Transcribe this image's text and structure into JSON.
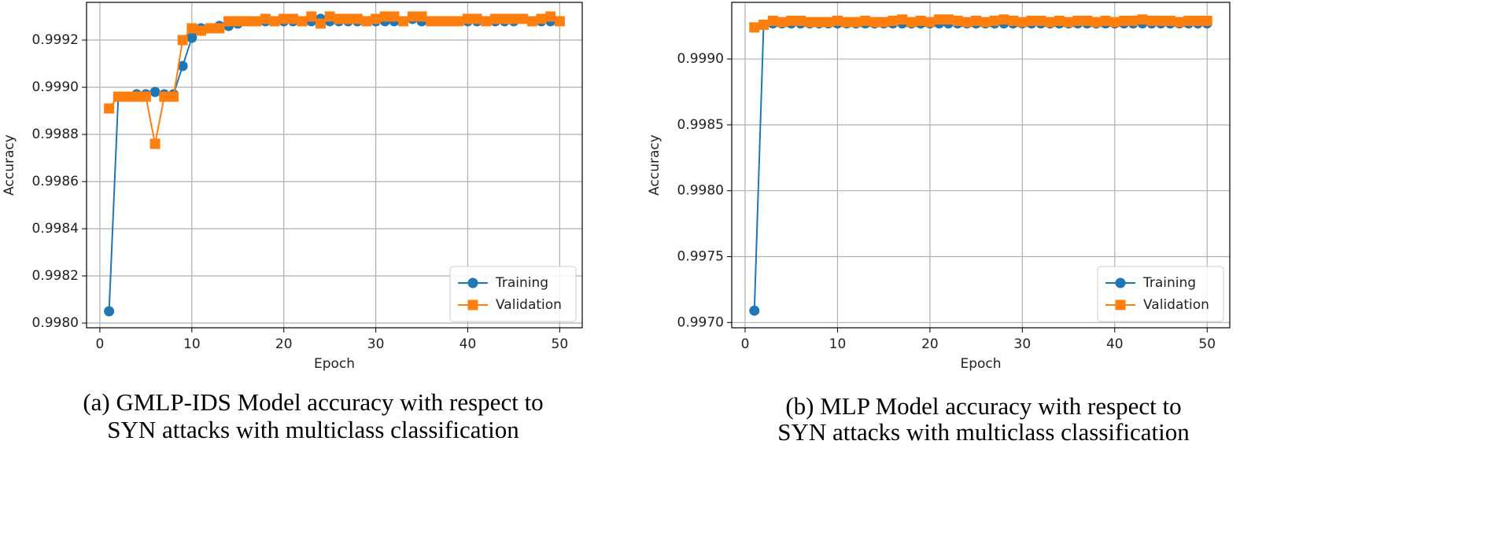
{
  "chart_data": [
    {
      "type": "line",
      "xlabel": "Epoch",
      "ylabel": "Accuracy",
      "caption": [
        "(a) GMLP-IDS Model accuracy with respect to",
        "SYN attacks with multiclass classification"
      ],
      "x": [
        1,
        2,
        3,
        4,
        5,
        6,
        7,
        8,
        9,
        10,
        11,
        12,
        13,
        14,
        15,
        16,
        17,
        18,
        19,
        20,
        21,
        22,
        23,
        24,
        25,
        26,
        27,
        28,
        29,
        30,
        31,
        32,
        33,
        34,
        35,
        36,
        37,
        38,
        39,
        40,
        41,
        42,
        43,
        44,
        45,
        46,
        47,
        48,
        49,
        50
      ],
      "series": [
        {
          "name": "Training",
          "color": "#1f77b4",
          "marker": "circle",
          "values": [
            0.99805,
            0.99896,
            0.99896,
            0.99897,
            0.99897,
            0.99898,
            0.99897,
            0.99897,
            0.99909,
            0.99921,
            0.99925,
            0.99925,
            0.99926,
            0.99926,
            0.99927,
            0.99928,
            0.99928,
            0.99928,
            0.99928,
            0.99928,
            0.99928,
            0.99928,
            0.99928,
            0.99929,
            0.99928,
            0.99928,
            0.99928,
            0.99928,
            0.99928,
            0.99928,
            0.99928,
            0.99928,
            0.99928,
            0.99929,
            0.99928,
            0.99928,
            0.99928,
            0.99928,
            0.99928,
            0.99928,
            0.99928,
            0.99928,
            0.99928,
            0.99928,
            0.99928,
            0.99929,
            0.99928,
            0.99928,
            0.99928,
            0.99928
          ]
        },
        {
          "name": "Validation",
          "color": "#ff7f0e",
          "marker": "square",
          "values": [
            0.99891,
            0.99896,
            0.99896,
            0.99896,
            0.99896,
            0.99876,
            0.99896,
            0.99896,
            0.9992,
            0.99925,
            0.99924,
            0.99925,
            0.99925,
            0.99928,
            0.99928,
            0.99928,
            0.99928,
            0.99929,
            0.99928,
            0.99929,
            0.99929,
            0.99928,
            0.9993,
            0.99927,
            0.9993,
            0.99929,
            0.99929,
            0.99929,
            0.99928,
            0.99929,
            0.9993,
            0.9993,
            0.99928,
            0.9993,
            0.9993,
            0.99928,
            0.99928,
            0.99928,
            0.99928,
            0.99929,
            0.99929,
            0.99928,
            0.99929,
            0.99929,
            0.99929,
            0.99929,
            0.99928,
            0.99929,
            0.9993,
            0.99928
          ]
        }
      ],
      "xlim": [
        -1.45,
        52.45
      ],
      "xticks": [
        0,
        10,
        20,
        30,
        40,
        50
      ],
      "ylim": [
        0.99798,
        0.99936
      ],
      "yticks": [
        {
          "value": 0.998,
          "label": "0.9980"
        },
        0.9982,
        0.9984,
        0.9986,
        0.9988,
        {
          "value": 0.999,
          "label": "0.9990"
        },
        0.9992
      ],
      "grid": true,
      "legend": "lower right"
    },
    {
      "type": "line",
      "xlabel": "Epoch",
      "ylabel": "Accuracy",
      "caption": [
        "(b) MLP Model accuracy with respect to",
        "SYN attacks with multiclass classification"
      ],
      "x": [
        1,
        2,
        3,
        4,
        5,
        6,
        7,
        8,
        9,
        10,
        11,
        12,
        13,
        14,
        15,
        16,
        17,
        18,
        19,
        20,
        21,
        22,
        23,
        24,
        25,
        26,
        27,
        28,
        29,
        30,
        31,
        32,
        33,
        34,
        35,
        36,
        37,
        38,
        39,
        40,
        41,
        42,
        43,
        44,
        45,
        46,
        47,
        48,
        49,
        50
      ],
      "series": [
        {
          "name": "Training",
          "color": "#1f77b4",
          "marker": "circle",
          "values": [
            0.99709,
            0.99926,
            0.99927,
            0.99927,
            0.99927,
            0.99927,
            0.99927,
            0.99927,
            0.99927,
            0.99927,
            0.99927,
            0.99927,
            0.99927,
            0.99927,
            0.99927,
            0.99927,
            0.99927,
            0.99927,
            0.99927,
            0.99927,
            0.99927,
            0.99927,
            0.99927,
            0.99927,
            0.99927,
            0.99927,
            0.99927,
            0.99927,
            0.99927,
            0.99927,
            0.99927,
            0.99927,
            0.99927,
            0.99927,
            0.99927,
            0.99927,
            0.99927,
            0.99927,
            0.99927,
            0.99927,
            0.99927,
            0.99927,
            0.99927,
            0.99927,
            0.99927,
            0.99927,
            0.99927,
            0.99927,
            0.99927,
            0.99927
          ]
        },
        {
          "name": "Validation",
          "color": "#ff7f0e",
          "marker": "square",
          "values": [
            0.99924,
            0.99926,
            0.99929,
            0.99928,
            0.99929,
            0.99929,
            0.99928,
            0.99928,
            0.99928,
            0.99929,
            0.99928,
            0.99928,
            0.99929,
            0.99928,
            0.99928,
            0.99929,
            0.9993,
            0.99928,
            0.99929,
            0.99928,
            0.9993,
            0.9993,
            0.99929,
            0.99928,
            0.99929,
            0.99928,
            0.99929,
            0.9993,
            0.99929,
            0.99928,
            0.99929,
            0.99929,
            0.99928,
            0.99929,
            0.99928,
            0.99929,
            0.99929,
            0.99928,
            0.99929,
            0.99928,
            0.99929,
            0.99929,
            0.9993,
            0.99929,
            0.99929,
            0.99929,
            0.99928,
            0.99929,
            0.99929,
            0.99929
          ]
        }
      ],
      "xlim": [
        -1.45,
        52.45
      ],
      "xticks": [
        0,
        10,
        20,
        30,
        40,
        50
      ],
      "ylim": [
        0.99696,
        0.99943
      ],
      "yticks": [
        {
          "value": 0.997,
          "label": "0.9970"
        },
        0.9975,
        {
          "value": 0.998,
          "label": "0.9980"
        },
        0.9985,
        {
          "value": 0.999,
          "label": "0.9990"
        }
      ],
      "grid": true,
      "legend": "lower right"
    }
  ]
}
